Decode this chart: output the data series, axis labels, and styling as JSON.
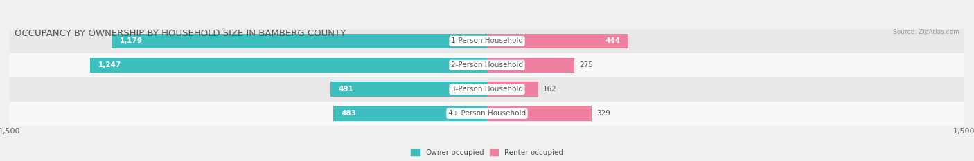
{
  "title": "OCCUPANCY BY OWNERSHIP BY HOUSEHOLD SIZE IN BAMBERG COUNTY",
  "source": "Source: ZipAtlas.com",
  "categories": [
    "1-Person Household",
    "2-Person Household",
    "3-Person Household",
    "4+ Person Household"
  ],
  "owner_values": [
    1179,
    1247,
    491,
    483
  ],
  "renter_values": [
    444,
    275,
    162,
    329
  ],
  "owner_color": "#3DBFBF",
  "renter_color": "#F080A0",
  "owner_label": "Owner-occupied",
  "renter_label": "Renter-occupied",
  "axis_max": 1500,
  "background_color": "#f0f0f0",
  "row_colors": [
    "#e8e8e8",
    "#f8f8f8",
    "#e8e8e8",
    "#f8f8f8"
  ],
  "title_fontsize": 9.5,
  "label_fontsize": 7.5,
  "axis_label_fontsize": 8,
  "bar_height": 0.62
}
